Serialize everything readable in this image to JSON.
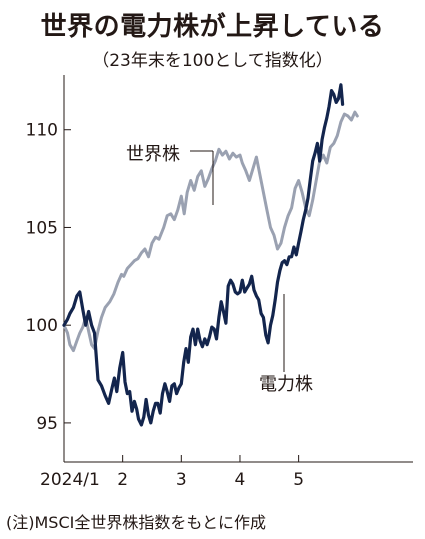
{
  "title": "世界の電力株が上昇している",
  "subtitle": "（23年末を100として指数化）",
  "note": "(注)MSCI全世界株指数をもとに作成",
  "chart_data": {
    "type": "line",
    "ylim": [
      93,
      112.8
    ],
    "xlim": [
      0,
      5.95
    ],
    "yticks": [
      {
        "value": 95,
        "label": "95"
      },
      {
        "value": 100,
        "label": "100"
      },
      {
        "value": 105,
        "label": "105"
      },
      {
        "value": 110,
        "label": "110"
      }
    ],
    "xticks": [
      {
        "value": 0,
        "label": "2024/1"
      },
      {
        "value": 1,
        "label": "2"
      },
      {
        "value": 2,
        "label": "3"
      },
      {
        "value": 3,
        "label": "4"
      },
      {
        "value": 4,
        "label": "5"
      }
    ],
    "series": [
      {
        "name": "世界株",
        "color": "#9aa1b1",
        "points": [
          [
            0.0,
            100.0
          ],
          [
            0.06,
            99.6
          ],
          [
            0.1,
            99.0
          ],
          [
            0.16,
            98.7
          ],
          [
            0.22,
            99.2
          ],
          [
            0.27,
            99.6
          ],
          [
            0.32,
            99.9
          ],
          [
            0.37,
            100.4
          ],
          [
            0.42,
            99.7
          ],
          [
            0.47,
            99.0
          ],
          [
            0.52,
            98.8
          ],
          [
            0.58,
            99.7
          ],
          [
            0.64,
            100.4
          ],
          [
            0.7,
            100.9
          ],
          [
            0.78,
            101.2
          ],
          [
            0.85,
            101.6
          ],
          [
            0.92,
            102.2
          ],
          [
            0.98,
            102.6
          ],
          [
            1.02,
            102.5
          ],
          [
            1.08,
            102.9
          ],
          [
            1.14,
            103.1
          ],
          [
            1.2,
            103.3
          ],
          [
            1.26,
            103.4
          ],
          [
            1.32,
            103.7
          ],
          [
            1.38,
            103.9
          ],
          [
            1.44,
            103.5
          ],
          [
            1.5,
            104.2
          ],
          [
            1.56,
            104.5
          ],
          [
            1.62,
            104.4
          ],
          [
            1.7,
            105.0
          ],
          [
            1.76,
            105.6
          ],
          [
            1.82,
            105.7
          ],
          [
            1.88,
            105.4
          ],
          [
            1.94,
            105.9
          ],
          [
            2.0,
            106.6
          ],
          [
            2.05,
            105.7
          ],
          [
            2.1,
            106.8
          ],
          [
            2.16,
            107.4
          ],
          [
            2.22,
            106.9
          ],
          [
            2.28,
            107.6
          ],
          [
            2.34,
            107.9
          ],
          [
            2.4,
            107.1
          ],
          [
            2.46,
            107.5
          ],
          [
            2.52,
            108.0
          ],
          [
            2.58,
            108.4
          ],
          [
            2.64,
            109.0
          ],
          [
            2.7,
            108.7
          ],
          [
            2.76,
            108.9
          ],
          [
            2.82,
            108.5
          ],
          [
            2.88,
            108.8
          ],
          [
            2.94,
            108.6
          ],
          [
            3.0,
            108.7
          ],
          [
            3.04,
            108.3
          ],
          [
            3.1,
            107.9
          ],
          [
            3.16,
            107.4
          ],
          [
            3.22,
            108.0
          ],
          [
            3.28,
            108.6
          ],
          [
            3.34,
            107.7
          ],
          [
            3.4,
            106.8
          ],
          [
            3.46,
            105.9
          ],
          [
            3.52,
            105.0
          ],
          [
            3.58,
            104.6
          ],
          [
            3.64,
            103.9
          ],
          [
            3.7,
            104.2
          ],
          [
            3.76,
            105.0
          ],
          [
            3.82,
            105.6
          ],
          [
            3.88,
            106.0
          ],
          [
            3.94,
            107.0
          ],
          [
            4.0,
            107.4
          ],
          [
            4.06,
            106.8
          ],
          [
            4.12,
            106.0
          ],
          [
            4.18,
            105.6
          ],
          [
            4.24,
            106.4
          ],
          [
            4.3,
            107.4
          ],
          [
            4.36,
            108.4
          ],
          [
            4.42,
            108.7
          ],
          [
            4.48,
            108.3
          ],
          [
            4.54,
            109.1
          ],
          [
            4.6,
            109.3
          ],
          [
            4.66,
            109.7
          ],
          [
            4.72,
            110.4
          ],
          [
            4.78,
            110.8
          ],
          [
            4.84,
            110.7
          ],
          [
            4.9,
            110.5
          ],
          [
            4.96,
            110.9
          ],
          [
            5.0,
            110.7
          ]
        ]
      },
      {
        "name": "電力株",
        "color": "#13254d",
        "points": [
          [
            0.0,
            100.0
          ],
          [
            0.06,
            100.3
          ],
          [
            0.1,
            100.6
          ],
          [
            0.16,
            100.9
          ],
          [
            0.22,
            101.5
          ],
          [
            0.27,
            101.7
          ],
          [
            0.32,
            100.8
          ],
          [
            0.37,
            100.0
          ],
          [
            0.42,
            100.7
          ],
          [
            0.47,
            100.0
          ],
          [
            0.52,
            99.6
          ],
          [
            0.58,
            97.2
          ],
          [
            0.64,
            96.9
          ],
          [
            0.7,
            96.4
          ],
          [
            0.76,
            96.0
          ],
          [
            0.82,
            96.8
          ],
          [
            0.86,
            97.3
          ],
          [
            0.9,
            96.6
          ],
          [
            0.95,
            97.8
          ],
          [
            1.0,
            98.6
          ],
          [
            1.04,
            97.1
          ],
          [
            1.08,
            96.5
          ],
          [
            1.12,
            96.6
          ],
          [
            1.16,
            95.6
          ],
          [
            1.2,
            96.1
          ],
          [
            1.24,
            95.7
          ],
          [
            1.27,
            95.2
          ],
          [
            1.32,
            94.9
          ],
          [
            1.36,
            95.3
          ],
          [
            1.4,
            96.2
          ],
          [
            1.44,
            95.4
          ],
          [
            1.48,
            95.0
          ],
          [
            1.52,
            95.6
          ],
          [
            1.56,
            96.0
          ],
          [
            1.6,
            96.0
          ],
          [
            1.64,
            95.5
          ],
          [
            1.68,
            96.5
          ],
          [
            1.72,
            97.0
          ],
          [
            1.76,
            96.6
          ],
          [
            1.8,
            96.1
          ],
          [
            1.84,
            96.9
          ],
          [
            1.88,
            97.0
          ],
          [
            1.92,
            96.5
          ],
          [
            1.96,
            96.8
          ],
          [
            2.0,
            97.0
          ],
          [
            2.04,
            98.1
          ],
          [
            2.08,
            98.8
          ],
          [
            2.12,
            98.1
          ],
          [
            2.16,
            99.4
          ],
          [
            2.2,
            99.8
          ],
          [
            2.24,
            99.0
          ],
          [
            2.28,
            99.8
          ],
          [
            2.32,
            99.2
          ],
          [
            2.36,
            98.9
          ],
          [
            2.4,
            99.3
          ],
          [
            2.44,
            99.0
          ],
          [
            2.48,
            99.4
          ],
          [
            2.52,
            99.9
          ],
          [
            2.56,
            99.8
          ],
          [
            2.6,
            99.3
          ],
          [
            2.64,
            100.4
          ],
          [
            2.68,
            101.2
          ],
          [
            2.72,
            100.7
          ],
          [
            2.76,
            100.1
          ],
          [
            2.8,
            102.0
          ],
          [
            2.84,
            102.3
          ],
          [
            2.88,
            102.1
          ],
          [
            2.92,
            101.7
          ],
          [
            2.96,
            101.6
          ],
          [
            3.0,
            101.7
          ],
          [
            3.04,
            102.3
          ],
          [
            3.08,
            101.7
          ],
          [
            3.12,
            101.9
          ],
          [
            3.16,
            102.1
          ],
          [
            3.2,
            102.5
          ],
          [
            3.24,
            101.8
          ],
          [
            3.28,
            101.5
          ],
          [
            3.32,
            101.3
          ],
          [
            3.36,
            100.6
          ],
          [
            3.4,
            100.4
          ],
          [
            3.44,
            99.5
          ],
          [
            3.48,
            99.1
          ],
          [
            3.52,
            100.0
          ],
          [
            3.56,
            100.5
          ],
          [
            3.6,
            101.3
          ],
          [
            3.64,
            102.2
          ],
          [
            3.68,
            102.8
          ],
          [
            3.72,
            103.2
          ],
          [
            3.76,
            103.3
          ],
          [
            3.8,
            103.1
          ],
          [
            3.84,
            103.5
          ],
          [
            3.88,
            103.5
          ],
          [
            3.92,
            104.0
          ],
          [
            3.96,
            103.6
          ],
          [
            4.0,
            104.2
          ],
          [
            4.04,
            104.8
          ],
          [
            4.08,
            105.4
          ],
          [
            4.12,
            105.9
          ],
          [
            4.16,
            106.5
          ],
          [
            4.2,
            107.5
          ],
          [
            4.24,
            108.4
          ],
          [
            4.28,
            108.8
          ],
          [
            4.32,
            109.3
          ],
          [
            4.36,
            108.4
          ],
          [
            4.4,
            109.5
          ],
          [
            4.44,
            110.1
          ],
          [
            4.48,
            110.6
          ],
          [
            4.52,
            111.2
          ],
          [
            4.56,
            112.0
          ],
          [
            4.6,
            111.8
          ],
          [
            4.64,
            111.4
          ],
          [
            4.68,
            111.6
          ],
          [
            4.72,
            112.3
          ],
          [
            4.75,
            111.3
          ]
        ]
      }
    ]
  }
}
